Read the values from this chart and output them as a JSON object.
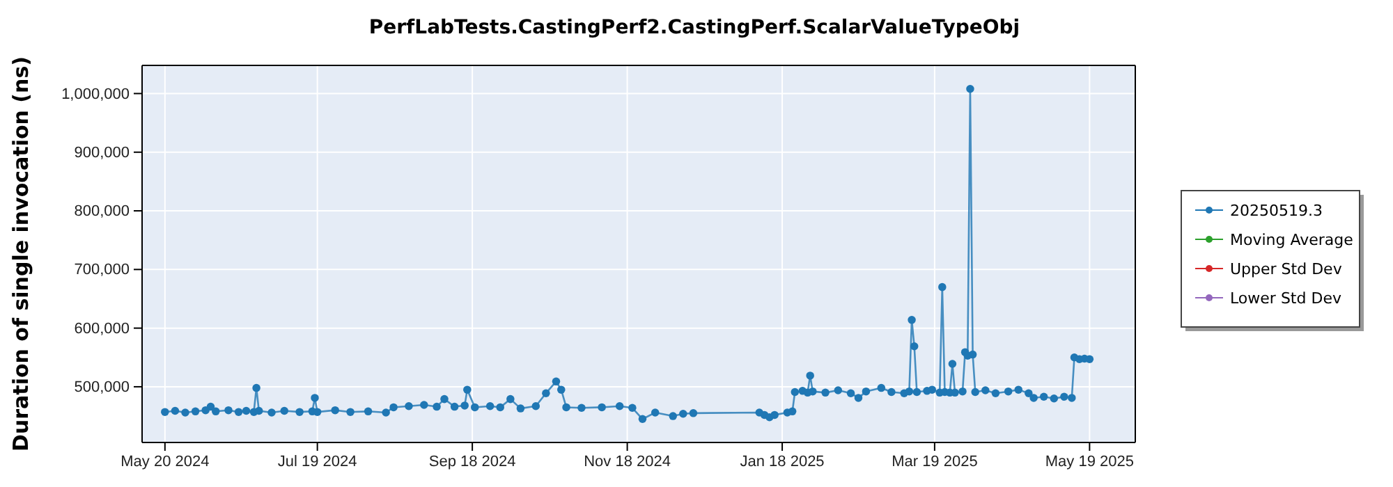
{
  "chart_data": {
    "type": "line",
    "title": "PerfLabTests.CastingPerf2.CastingPerf.ScalarValueTypeObj",
    "ylabel": "Duration of single invocation (ns)",
    "xlim": [
      "2024-05-11",
      "2025-06-06"
    ],
    "xticks": [
      {
        "value": "2024-05-20",
        "label": "May 20 2024"
      },
      {
        "value": "2024-07-19",
        "label": "Jul 19 2024"
      },
      {
        "value": "2024-09-18",
        "label": "Sep 18 2024"
      },
      {
        "value": "2024-11-18",
        "label": "Nov 18 2024"
      },
      {
        "value": "2025-01-18",
        "label": "Jan 18 2025"
      },
      {
        "value": "2025-03-19",
        "label": "Mar 19 2025"
      },
      {
        "value": "2025-05-19",
        "label": "May 19 2025"
      }
    ],
    "ylim": [
      405000,
      1048000
    ],
    "yticks": [
      {
        "value": 500000,
        "label": "500,000"
      },
      {
        "value": 600000,
        "label": "600,000"
      },
      {
        "value": 700000,
        "label": "700,000"
      },
      {
        "value": 800000,
        "label": "800,000"
      },
      {
        "value": 900000,
        "label": "900,000"
      },
      {
        "value": 1000000,
        "label": "1,000,000"
      }
    ],
    "grid": true,
    "legend": "right",
    "marker": "circle",
    "series": [
      {
        "name": "20250519.3",
        "color": "#1f77b4",
        "x": [
          "2024-05-20",
          "2024-05-24",
          "2024-05-28",
          "2024-06-01",
          "2024-06-05",
          "2024-06-07",
          "2024-06-09",
          "2024-06-14",
          "2024-06-18",
          "2024-06-21",
          "2024-06-24",
          "2024-06-25",
          "2024-06-26",
          "2024-07-01",
          "2024-07-06",
          "2024-07-12",
          "2024-07-17",
          "2024-07-18",
          "2024-07-19",
          "2024-07-26",
          "2024-08-01",
          "2024-08-08",
          "2024-08-15",
          "2024-08-18",
          "2024-08-24",
          "2024-08-30",
          "2024-09-04",
          "2024-09-07",
          "2024-09-11",
          "2024-09-15",
          "2024-09-16",
          "2024-09-19",
          "2024-09-25",
          "2024-09-29",
          "2024-10-03",
          "2024-10-07",
          "2024-10-13",
          "2024-10-17",
          "2024-10-21",
          "2024-10-23",
          "2024-10-25",
          "2024-10-31",
          "2024-11-08",
          "2024-11-15",
          "2024-11-20",
          "2024-11-24",
          "2024-11-29",
          "2024-12-06",
          "2024-12-10",
          "2024-12-14",
          "2025-01-09",
          "2025-01-11",
          "2025-01-13",
          "2025-01-15",
          "2025-01-20",
          "2025-01-22",
          "2025-01-23",
          "2025-01-26",
          "2025-01-28",
          "2025-01-29",
          "2025-01-30",
          "2025-02-04",
          "2025-02-09",
          "2025-02-14",
          "2025-02-17",
          "2025-02-20",
          "2025-02-26",
          "2025-03-02",
          "2025-03-07",
          "2025-03-09",
          "2025-03-10",
          "2025-03-11",
          "2025-03-12",
          "2025-03-16",
          "2025-03-18",
          "2025-03-21",
          "2025-03-22",
          "2025-03-23",
          "2025-03-25",
          "2025-03-26",
          "2025-03-27",
          "2025-03-30",
          "2025-03-31",
          "2025-04-01",
          "2025-04-02",
          "2025-04-03",
          "2025-04-04",
          "2025-04-08",
          "2025-04-12",
          "2025-04-17",
          "2025-04-21",
          "2025-04-25",
          "2025-04-27",
          "2025-05-01",
          "2025-05-05",
          "2025-05-09",
          "2025-05-12",
          "2025-05-13",
          "2025-05-15",
          "2025-05-17",
          "2025-05-19"
        ],
        "values": [
          457000,
          459000,
          456000,
          458000,
          460000,
          466000,
          458000,
          460000,
          457000,
          459000,
          457000,
          498000,
          459000,
          456000,
          459000,
          457000,
          458000,
          481000,
          457000,
          460000,
          457000,
          458000,
          456000,
          465000,
          467000,
          469000,
          466000,
          479000,
          466000,
          468000,
          495000,
          465000,
          467000,
          465000,
          479000,
          463000,
          467000,
          489000,
          509000,
          495000,
          465000,
          464000,
          465000,
          467000,
          464000,
          445000,
          456000,
          450000,
          454000,
          455000,
          456000,
          452000,
          448000,
          452000,
          456000,
          458000,
          491000,
          493000,
          490000,
          519000,
          492000,
          490000,
          494000,
          489000,
          481000,
          492000,
          498000,
          491000,
          489000,
          492000,
          614000,
          569000,
          491000,
          493000,
          495000,
          490000,
          670000,
          491000,
          490000,
          539000,
          490000,
          492000,
          559000,
          553000,
          1008000,
          555000,
          491000,
          494000,
          489000,
          492000,
          495000,
          489000,
          481000,
          483000,
          480000,
          483000,
          481000,
          550000,
          547000,
          548000,
          547000
        ]
      },
      {
        "name": "Moving Average",
        "color": "#2ca02c"
      },
      {
        "name": "Upper Std Dev",
        "color": "#d62728"
      },
      {
        "name": "Lower Std Dev",
        "color": "#9467bd"
      }
    ]
  }
}
